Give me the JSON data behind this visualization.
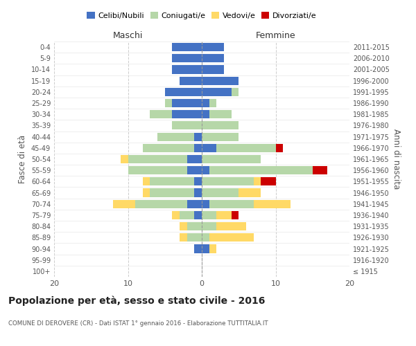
{
  "age_groups": [
    "100+",
    "95-99",
    "90-94",
    "85-89",
    "80-84",
    "75-79",
    "70-74",
    "65-69",
    "60-64",
    "55-59",
    "50-54",
    "45-49",
    "40-44",
    "35-39",
    "30-34",
    "25-29",
    "20-24",
    "15-19",
    "10-14",
    "5-9",
    "0-4"
  ],
  "birth_years": [
    "≤ 1915",
    "1916-1920",
    "1921-1925",
    "1926-1930",
    "1931-1935",
    "1936-1940",
    "1941-1945",
    "1946-1950",
    "1951-1955",
    "1956-1960",
    "1961-1965",
    "1966-1970",
    "1971-1975",
    "1976-1980",
    "1981-1985",
    "1986-1990",
    "1991-1995",
    "1996-2000",
    "2001-2005",
    "2006-2010",
    "2011-2015"
  ],
  "maschi": {
    "celibi": [
      0,
      0,
      1,
      0,
      0,
      1,
      2,
      1,
      1,
      2,
      2,
      1,
      1,
      0,
      4,
      4,
      5,
      3,
      4,
      4,
      4
    ],
    "coniugati": [
      0,
      0,
      0,
      2,
      2,
      2,
      7,
      6,
      6,
      8,
      8,
      7,
      5,
      4,
      3,
      1,
      0,
      0,
      0,
      0,
      0
    ],
    "vedovi": [
      0,
      0,
      0,
      1,
      1,
      1,
      3,
      1,
      1,
      0,
      1,
      0,
      0,
      0,
      0,
      0,
      0,
      0,
      0,
      0,
      0
    ],
    "divorziati": [
      0,
      0,
      0,
      0,
      0,
      0,
      0,
      0,
      0,
      0,
      0,
      0,
      0,
      0,
      0,
      0,
      0,
      0,
      0,
      0,
      0
    ]
  },
  "femmine": {
    "nubili": [
      0,
      0,
      1,
      0,
      0,
      0,
      1,
      0,
      0,
      1,
      0,
      2,
      0,
      0,
      1,
      1,
      4,
      5,
      3,
      3,
      3
    ],
    "coniugate": [
      0,
      0,
      0,
      1,
      2,
      2,
      6,
      5,
      7,
      14,
      8,
      8,
      5,
      5,
      3,
      1,
      1,
      0,
      0,
      0,
      0
    ],
    "vedove": [
      0,
      0,
      1,
      6,
      4,
      2,
      5,
      3,
      1,
      0,
      0,
      0,
      0,
      0,
      0,
      0,
      0,
      0,
      0,
      0,
      0
    ],
    "divorziate": [
      0,
      0,
      0,
      0,
      0,
      1,
      0,
      0,
      2,
      2,
      0,
      1,
      0,
      0,
      0,
      0,
      0,
      0,
      0,
      0,
      0
    ]
  },
  "colors": {
    "celibi": "#4472c4",
    "coniugati": "#b6d7a8",
    "vedovi": "#ffd966",
    "divorziati": "#cc0000"
  },
  "xlim": [
    -20,
    20
  ],
  "xticks": [
    -20,
    -10,
    0,
    10,
    20
  ],
  "xtick_labels": [
    "20",
    "10",
    "0",
    "10",
    "20"
  ],
  "title": "Popolazione per età, sesso e stato civile - 2016",
  "subtitle": "COMUNE DI DEROVERE (CR) - Dati ISTAT 1° gennaio 2016 - Elaborazione TUTTITALIA.IT",
  "ylabel_left": "Fasce di età",
  "ylabel_right": "Anni di nascita",
  "legend_labels": [
    "Celibi/Nubili",
    "Coniugati/e",
    "Vedovi/e",
    "Divorziati/e"
  ],
  "bg_color": "#ffffff",
  "grid_color": "#cccccc",
  "bar_height": 0.75
}
